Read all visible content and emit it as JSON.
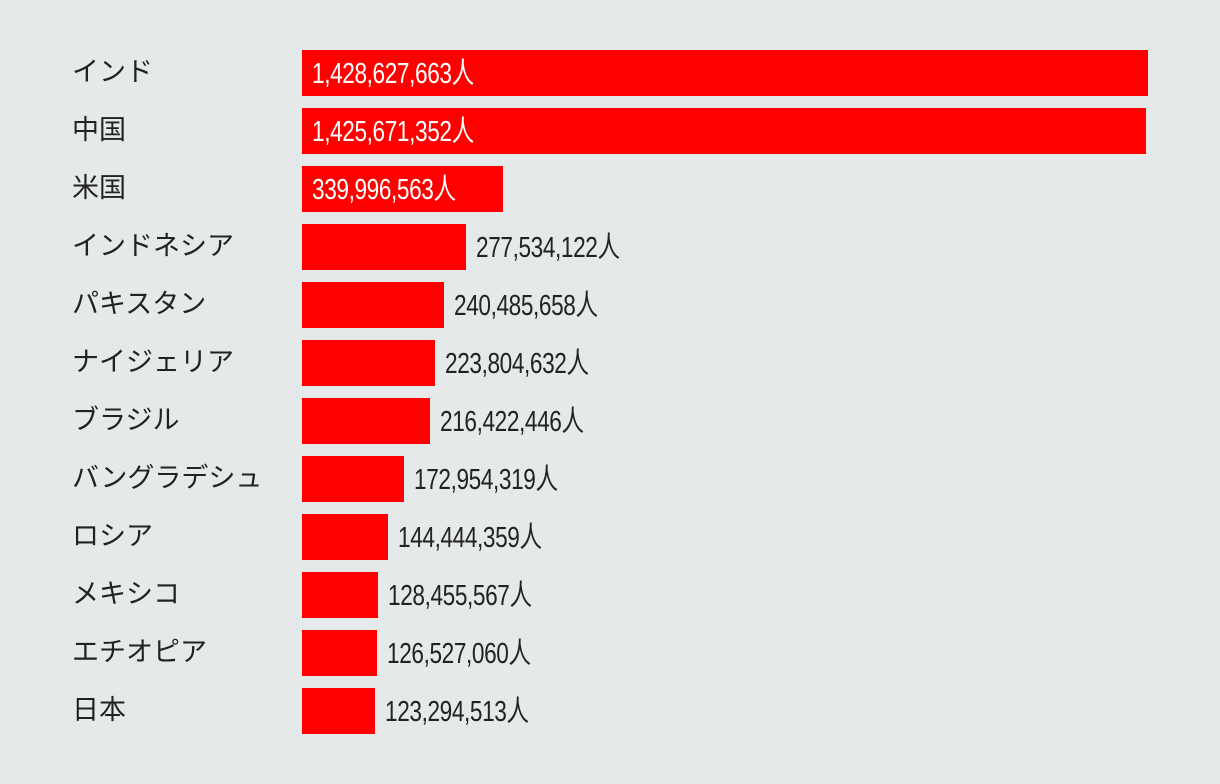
{
  "chart_data": {
    "type": "bar",
    "orientation": "horizontal",
    "unit": "人",
    "bar_color": "#ff0000",
    "background_color": "#e5e9ea",
    "categories": [
      "インド",
      "中国",
      "米国",
      "インドネシア",
      "パキスタン",
      "ナイジェリア",
      "ブラジル",
      "バングラデシュ",
      "ロシア",
      "メキシコ",
      "エチオピア",
      "日本"
    ],
    "values": [
      1428627663,
      1425671352,
      339996563,
      277534122,
      240485658,
      223804632,
      216422446,
      172954319,
      144444359,
      128455567,
      126527060,
      123294513
    ],
    "labels": [
      "1,428,627,663人",
      "1,425,671,352人",
      "339,996,563人",
      "277,534,122人",
      "240,485,658人",
      "223,804,632人",
      "216,422,446人",
      "172,954,319人",
      "144,444,359人",
      "128,455,567人",
      "126,527,060人",
      "123,294,513人"
    ],
    "xlim": [
      0,
      1428627663
    ]
  }
}
